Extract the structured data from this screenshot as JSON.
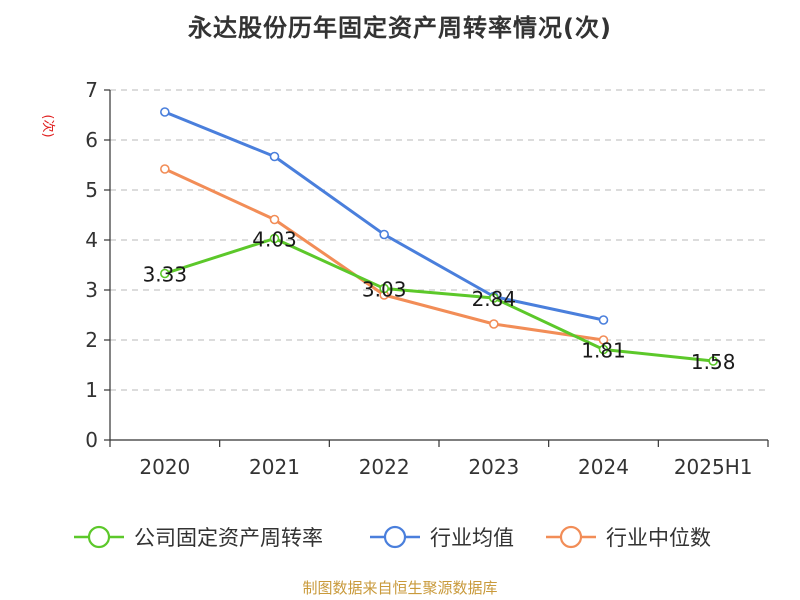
{
  "title": "永达股份历年固定资产周转率情况(次)",
  "source": "制图数据来自恒生聚源数据库",
  "chart_data": {
    "type": "line",
    "title": "永达股份历年固定资产周转率情况(次)",
    "ylabel": "(次)",
    "xlabel": "",
    "categories": [
      "2020",
      "2021",
      "2022",
      "2023",
      "2024",
      "2025H1"
    ],
    "ylim": [
      0,
      7
    ],
    "yticks": [
      "0",
      "1",
      "2",
      "3",
      "4",
      "5",
      "6",
      "7"
    ],
    "grid": true,
    "legend_position": "bottom",
    "series": [
      {
        "name": "公司固定资产周转率",
        "color": "#5cc82a",
        "values": [
          3.33,
          4.03,
          3.03,
          2.84,
          1.81,
          1.58
        ],
        "labels": [
          "3.33",
          "4.03",
          "3.03",
          "2.84",
          "1.81",
          "1.58"
        ]
      },
      {
        "name": "行业均值",
        "color": "#4a7fdc",
        "values": [
          6.56,
          5.67,
          4.11,
          2.87,
          2.4,
          null
        ]
      },
      {
        "name": "行业中位数",
        "color": "#f28d57",
        "values": [
          5.42,
          4.41,
          2.9,
          2.32,
          2.0,
          null
        ]
      }
    ]
  }
}
